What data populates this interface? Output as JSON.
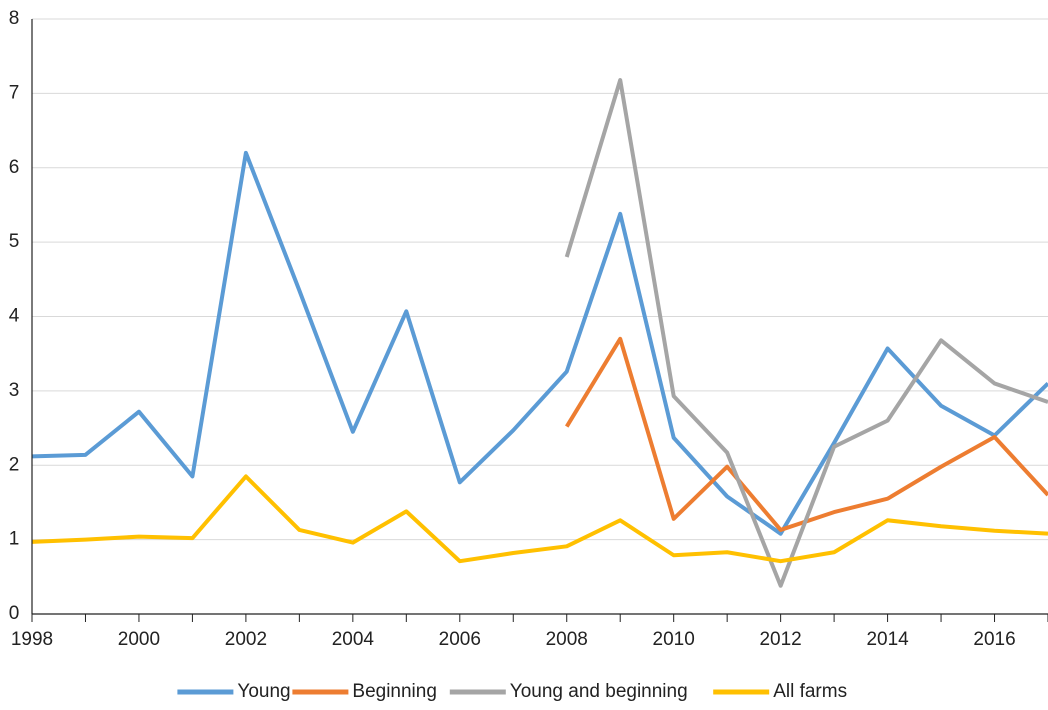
{
  "chart_data": {
    "type": "line",
    "x": [
      1998,
      1999,
      2000,
      2001,
      2002,
      2003,
      2004,
      2005,
      2006,
      2007,
      2008,
      2009,
      2010,
      2011,
      2012,
      2013,
      2014,
      2015,
      2016,
      2017
    ],
    "series": [
      {
        "name": "Young",
        "color": "#5b9bd5",
        "values": [
          2.12,
          2.14,
          2.72,
          1.85,
          6.2,
          4.35,
          2.45,
          4.07,
          1.77,
          2.47,
          3.26,
          5.38,
          2.37,
          1.58,
          1.08,
          2.3,
          3.57,
          2.8,
          2.4,
          3.1
        ]
      },
      {
        "name": "Beginning",
        "color": "#ed7d31",
        "values": [
          null,
          null,
          null,
          null,
          null,
          null,
          null,
          null,
          null,
          null,
          2.52,
          3.7,
          1.28,
          1.98,
          1.13,
          1.37,
          1.55,
          1.98,
          2.38,
          1.6
        ]
      },
      {
        "name": "Young and beginning",
        "color": "#a5a5a5",
        "values": [
          null,
          null,
          null,
          null,
          null,
          null,
          null,
          null,
          null,
          null,
          4.8,
          7.18,
          2.93,
          2.17,
          0.38,
          2.25,
          2.6,
          3.68,
          3.1,
          2.85
        ]
      },
      {
        "name": "All farms",
        "color": "#ffc000",
        "values": [
          0.97,
          1.0,
          1.04,
          1.02,
          1.85,
          1.13,
          0.96,
          1.38,
          0.71,
          0.82,
          0.91,
          1.26,
          0.79,
          0.83,
          0.71,
          0.83,
          1.26,
          1.18,
          1.12,
          1.08
        ]
      }
    ],
    "xlim": [
      1998,
      2017
    ],
    "xticks": [
      1998,
      2000,
      2002,
      2004,
      2006,
      2008,
      2010,
      2012,
      2014,
      2016
    ],
    "ylim": [
      0,
      8
    ],
    "yticks": [
      0,
      1,
      2,
      3,
      4,
      5,
      6,
      7,
      8
    ],
    "grid": true,
    "legend": "bottom"
  }
}
